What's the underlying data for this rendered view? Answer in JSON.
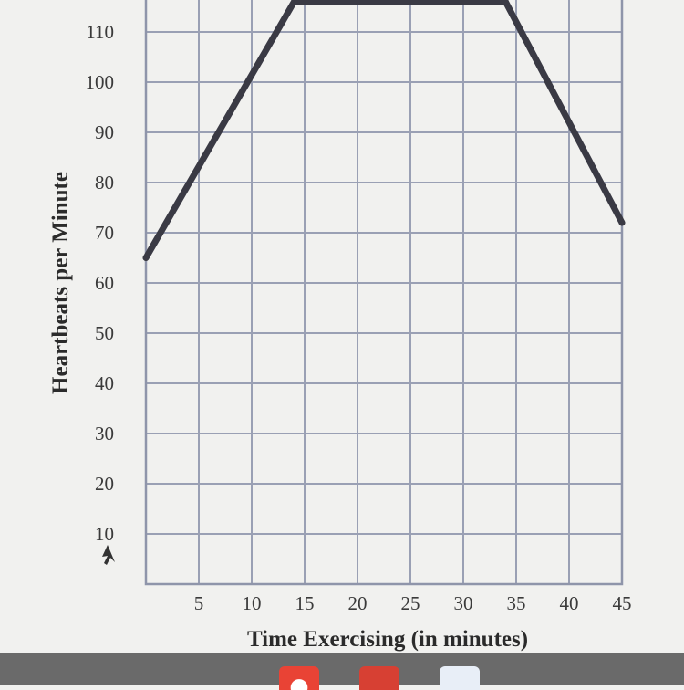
{
  "chart_data": {
    "type": "line",
    "title": "",
    "xlabel": "Time Exercising (in minutes)",
    "ylabel": "Heartbeats per Minute",
    "x_ticks": [
      5,
      10,
      15,
      20,
      25,
      30,
      35,
      40,
      45
    ],
    "y_ticks": [
      10,
      20,
      30,
      40,
      50,
      60,
      70,
      80,
      90,
      100,
      110
    ],
    "xlim": [
      0,
      45
    ],
    "ylim": [
      0,
      120
    ],
    "grid": true,
    "series": [
      {
        "name": "",
        "color": "#3a3a44",
        "points": [
          {
            "x": 0,
            "y": 65
          },
          {
            "x": 14,
            "y": 116
          },
          {
            "x": 34,
            "y": 116
          },
          {
            "x": 45,
            "y": 72
          }
        ]
      }
    ]
  },
  "taskbar": {
    "icons": [
      "chrome-icon",
      "mail-icon",
      "document-icon"
    ]
  }
}
